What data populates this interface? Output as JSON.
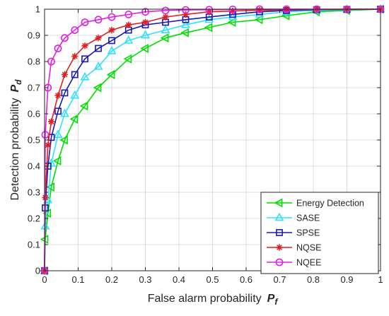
{
  "chart_data": {
    "type": "line",
    "xlabel": "False alarm probability",
    "xlabel_symbol": "P",
    "xlabel_subscript": "f",
    "ylabel": "Detection probability",
    "ylabel_symbol": "P",
    "ylabel_subscript": "d",
    "xlim": [
      0,
      1
    ],
    "ylim": [
      0,
      1
    ],
    "xticks": [
      "0",
      "0.1",
      "0.2",
      "0.3",
      "0.4",
      "0.5",
      "0.6",
      "0.7",
      "0.8",
      "0.9",
      "1"
    ],
    "yticks": [
      "0",
      "0.1",
      "0.2",
      "0.3",
      "0.4",
      "0.5",
      "0.6",
      "0.7",
      "0.8",
      "0.9",
      "1"
    ],
    "grid": true,
    "legend_position": "bottom-right",
    "series": [
      {
        "name": "Energy Detection",
        "color": "#00e000",
        "marker": "triangle-left",
        "x": [
          0,
          0.002,
          0.01,
          0.02,
          0.04,
          0.06,
          0.09,
          0.12,
          0.16,
          0.2,
          0.25,
          0.3,
          0.36,
          0.42,
          0.49,
          0.56,
          0.64,
          0.72,
          0.81,
          0.9,
          1.0
        ],
        "y": [
          0,
          0.12,
          0.22,
          0.32,
          0.42,
          0.5,
          0.58,
          0.63,
          0.7,
          0.75,
          0.81,
          0.85,
          0.89,
          0.91,
          0.93,
          0.95,
          0.96,
          0.975,
          0.99,
          0.995,
          1.0
        ]
      },
      {
        "name": "SASE",
        "color": "#30e0ff",
        "marker": "triangle-up",
        "x": [
          0,
          0.002,
          0.01,
          0.02,
          0.04,
          0.06,
          0.09,
          0.12,
          0.16,
          0.2,
          0.25,
          0.3,
          0.36,
          0.42,
          0.49,
          0.56,
          0.64,
          0.72,
          0.81,
          0.9,
          1.0
        ],
        "y": [
          0,
          0.17,
          0.27,
          0.41,
          0.52,
          0.6,
          0.67,
          0.74,
          0.78,
          0.84,
          0.88,
          0.9,
          0.92,
          0.94,
          0.96,
          0.97,
          0.98,
          0.99,
          0.995,
          0.998,
          1.0
        ]
      },
      {
        "name": "SPSE",
        "color": "#1a1ab0",
        "marker": "square",
        "x": [
          0,
          0.002,
          0.01,
          0.02,
          0.04,
          0.06,
          0.09,
          0.12,
          0.16,
          0.2,
          0.25,
          0.3,
          0.36,
          0.42,
          0.49,
          0.56,
          0.64,
          0.72,
          0.81,
          0.9,
          1.0
        ],
        "y": [
          0,
          0.24,
          0.4,
          0.51,
          0.61,
          0.68,
          0.75,
          0.81,
          0.85,
          0.88,
          0.92,
          0.94,
          0.95,
          0.96,
          0.97,
          0.98,
          0.99,
          0.995,
          0.998,
          0.999,
          1.0
        ]
      },
      {
        "name": "NQSE",
        "color": "#e02020",
        "marker": "asterisk",
        "x": [
          0,
          0.002,
          0.01,
          0.02,
          0.04,
          0.06,
          0.09,
          0.12,
          0.16,
          0.2,
          0.25,
          0.3,
          0.36,
          0.42,
          0.49,
          0.56,
          0.64,
          0.72,
          0.81,
          0.9,
          1.0
        ],
        "y": [
          0,
          0.28,
          0.48,
          0.57,
          0.67,
          0.75,
          0.82,
          0.86,
          0.89,
          0.92,
          0.94,
          0.95,
          0.97,
          0.98,
          0.99,
          0.993,
          0.996,
          0.998,
          0.999,
          1.0,
          1.0
        ]
      },
      {
        "name": "NQEE",
        "color": "#e020e0",
        "marker": "circle",
        "x": [
          0,
          0.002,
          0.01,
          0.02,
          0.04,
          0.06,
          0.09,
          0.12,
          0.16,
          0.2,
          0.25,
          0.3,
          0.36,
          0.42,
          0.49,
          0.56,
          0.64,
          0.72,
          0.81,
          0.9,
          1.0
        ],
        "y": [
          0,
          0.52,
          0.7,
          0.8,
          0.85,
          0.89,
          0.92,
          0.95,
          0.96,
          0.97,
          0.98,
          0.99,
          0.995,
          0.997,
          0.998,
          0.999,
          1.0,
          1.0,
          1.0,
          1.0,
          1.0
        ]
      }
    ]
  }
}
